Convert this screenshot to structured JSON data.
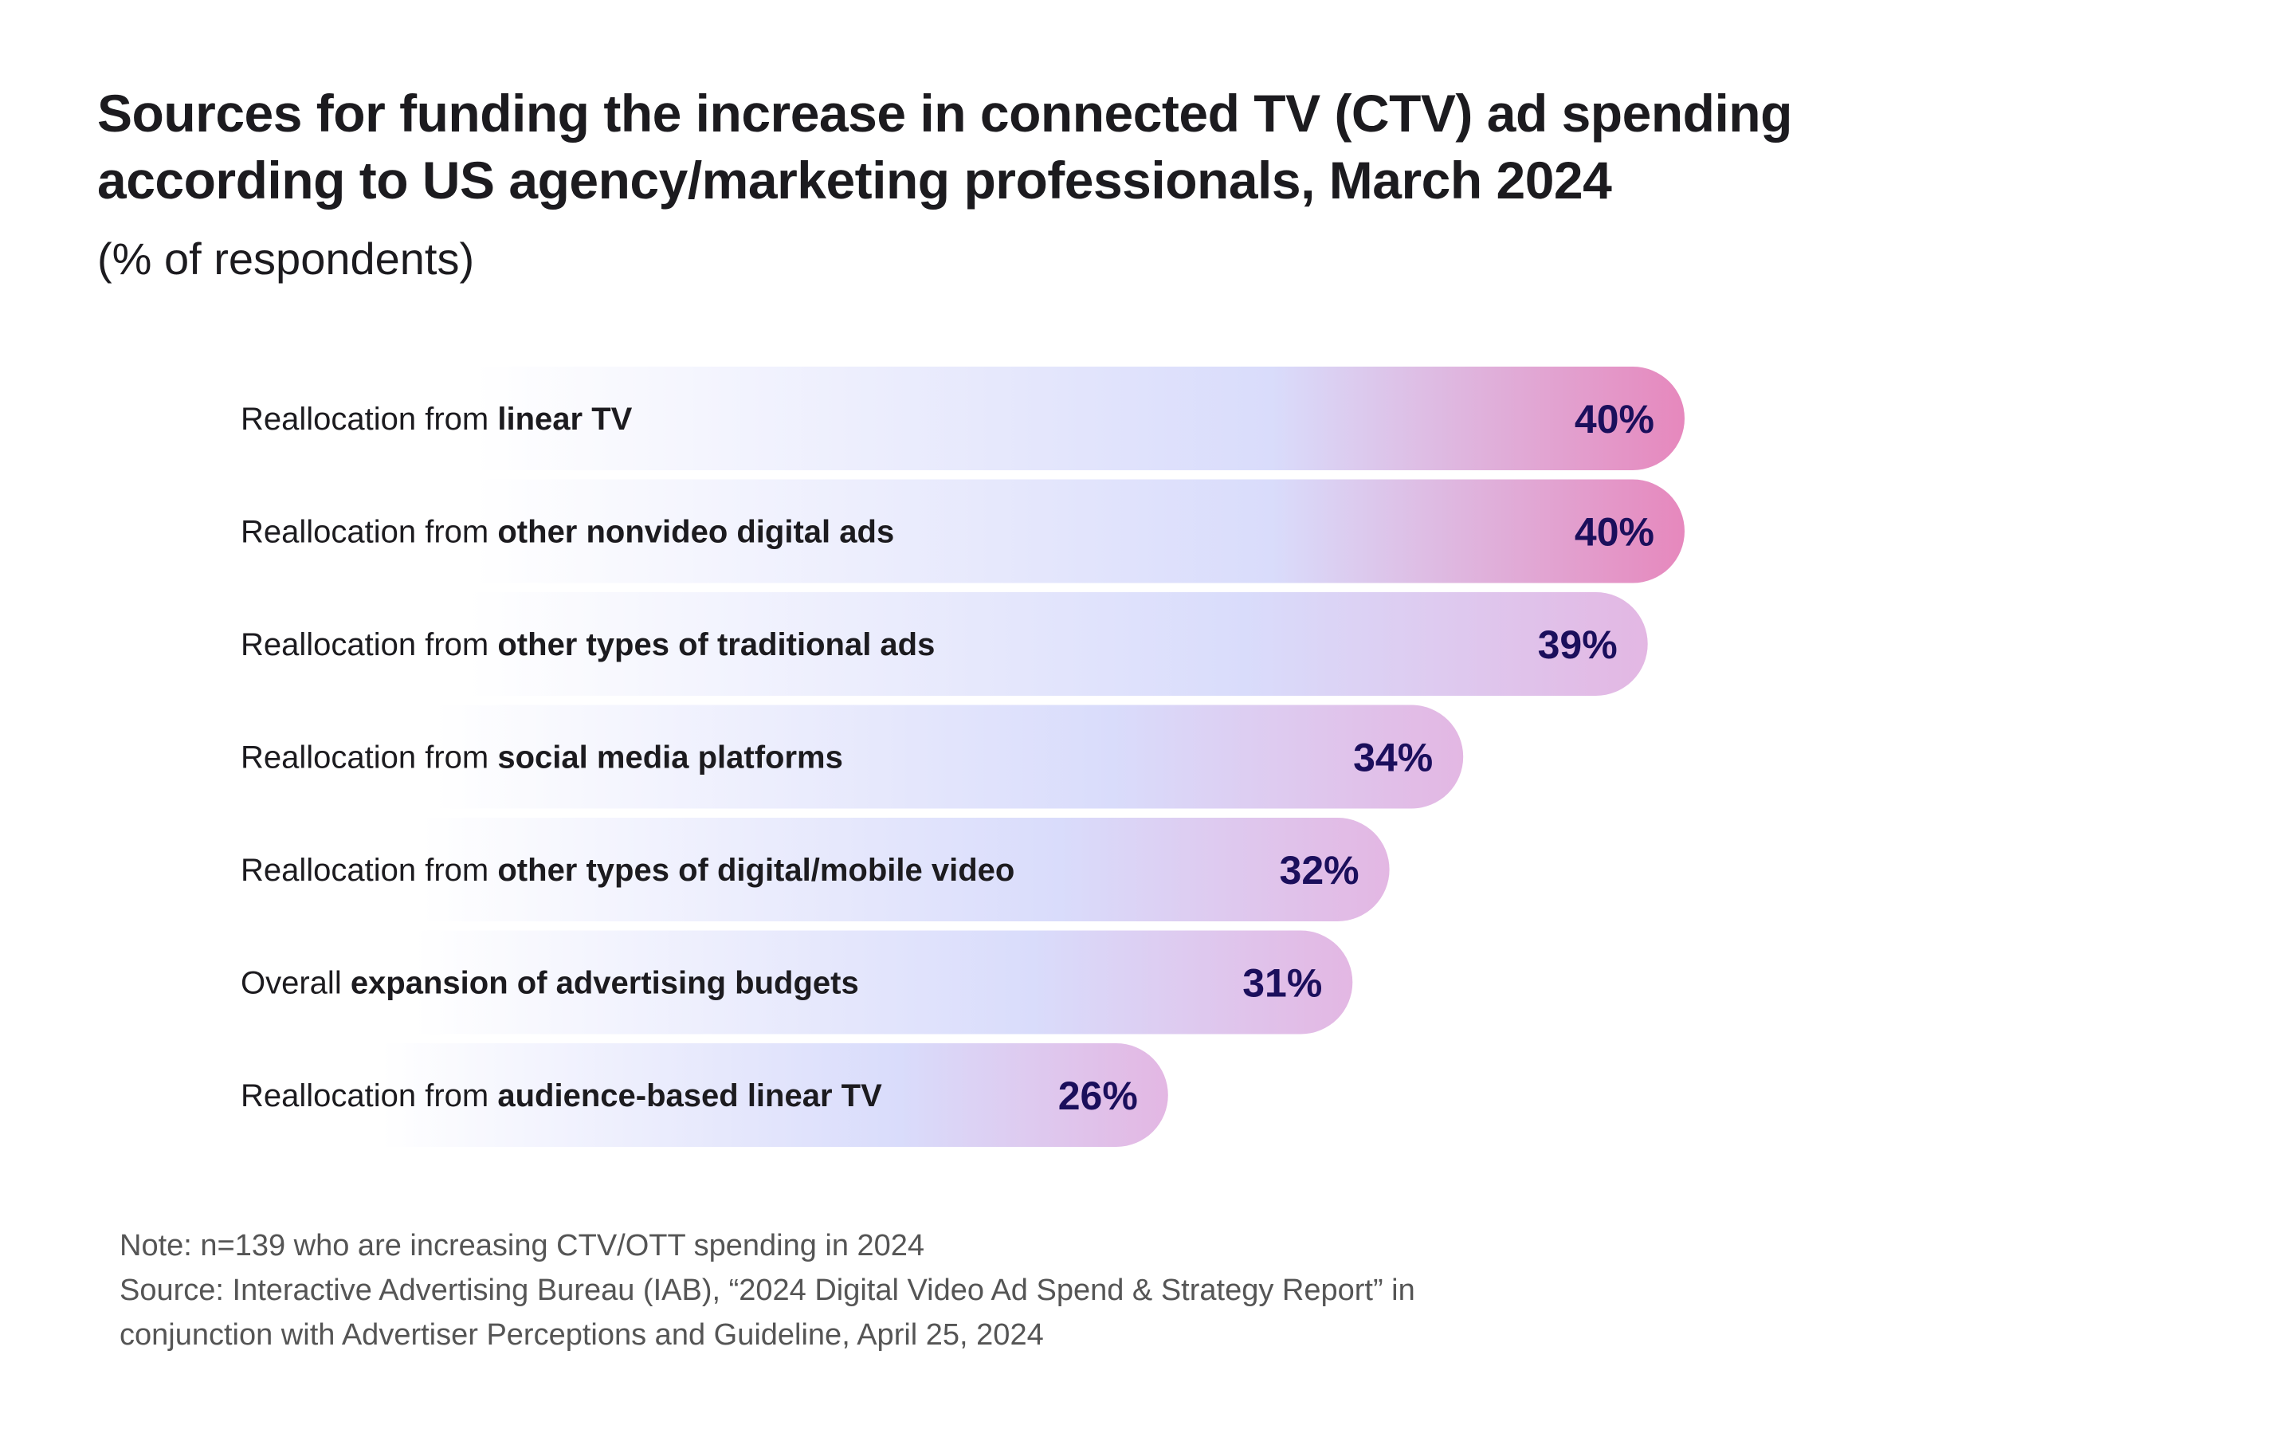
{
  "header": {
    "title_line1": "Sources for funding the increase in connected TV (CTV) ad spending",
    "title_line2": "according to US agency/marketing professionals, March 2024",
    "subtitle": "(% of respondents)"
  },
  "chart_data": {
    "type": "bar",
    "orientation": "horizontal",
    "title": "Sources for funding the increase in connected TV (CTV) ad spending according to US agency/marketing professionals, March 2024",
    "subtitle": "(% of respondents)",
    "categories": [
      {
        "prefix": "Reallocation from ",
        "emphasis": "linear TV",
        "suffix": ""
      },
      {
        "prefix": "Reallocation from ",
        "emphasis": "other nonvideo digital ads",
        "suffix": ""
      },
      {
        "prefix": "Reallocation from ",
        "emphasis": "other types of traditional ads",
        "suffix": ""
      },
      {
        "prefix": "Reallocation from ",
        "emphasis": "social media platforms",
        "suffix": ""
      },
      {
        "prefix": "Reallocation from ",
        "emphasis": "other types of digital/mobile video",
        "suffix": ""
      },
      {
        "prefix": "Overall ",
        "emphasis": "expansion of advertising budgets",
        "suffix": ""
      },
      {
        "prefix": "Reallocation from ",
        "emphasis": "audience-based linear TV",
        "suffix": ""
      }
    ],
    "values": [
      40,
      40,
      39,
      34,
      32,
      31,
      26
    ],
    "value_labels": [
      "40%",
      "40%",
      "39%",
      "34%",
      "32%",
      "31%",
      "26%"
    ],
    "unit": "%",
    "legend": "none",
    "grid": false,
    "colors": {
      "bar_start": "#ffffff",
      "bar_mid": "#d9dcfb",
      "bar_end_low": "#e3b7e3",
      "bar_end_high": "#e688bd",
      "value_text": "#1b0f5c"
    }
  },
  "footer": {
    "note": "Note: n=139 who are increasing CTV/OTT spending in 2024",
    "source_line1": "Source: Interactive Advertising Bureau (IAB), “2024 Digital Video Ad Spend & Strategy Report” in",
    "source_line2": "conjunction with Advertiser Perceptions and Guideline, April 25, 2024"
  }
}
